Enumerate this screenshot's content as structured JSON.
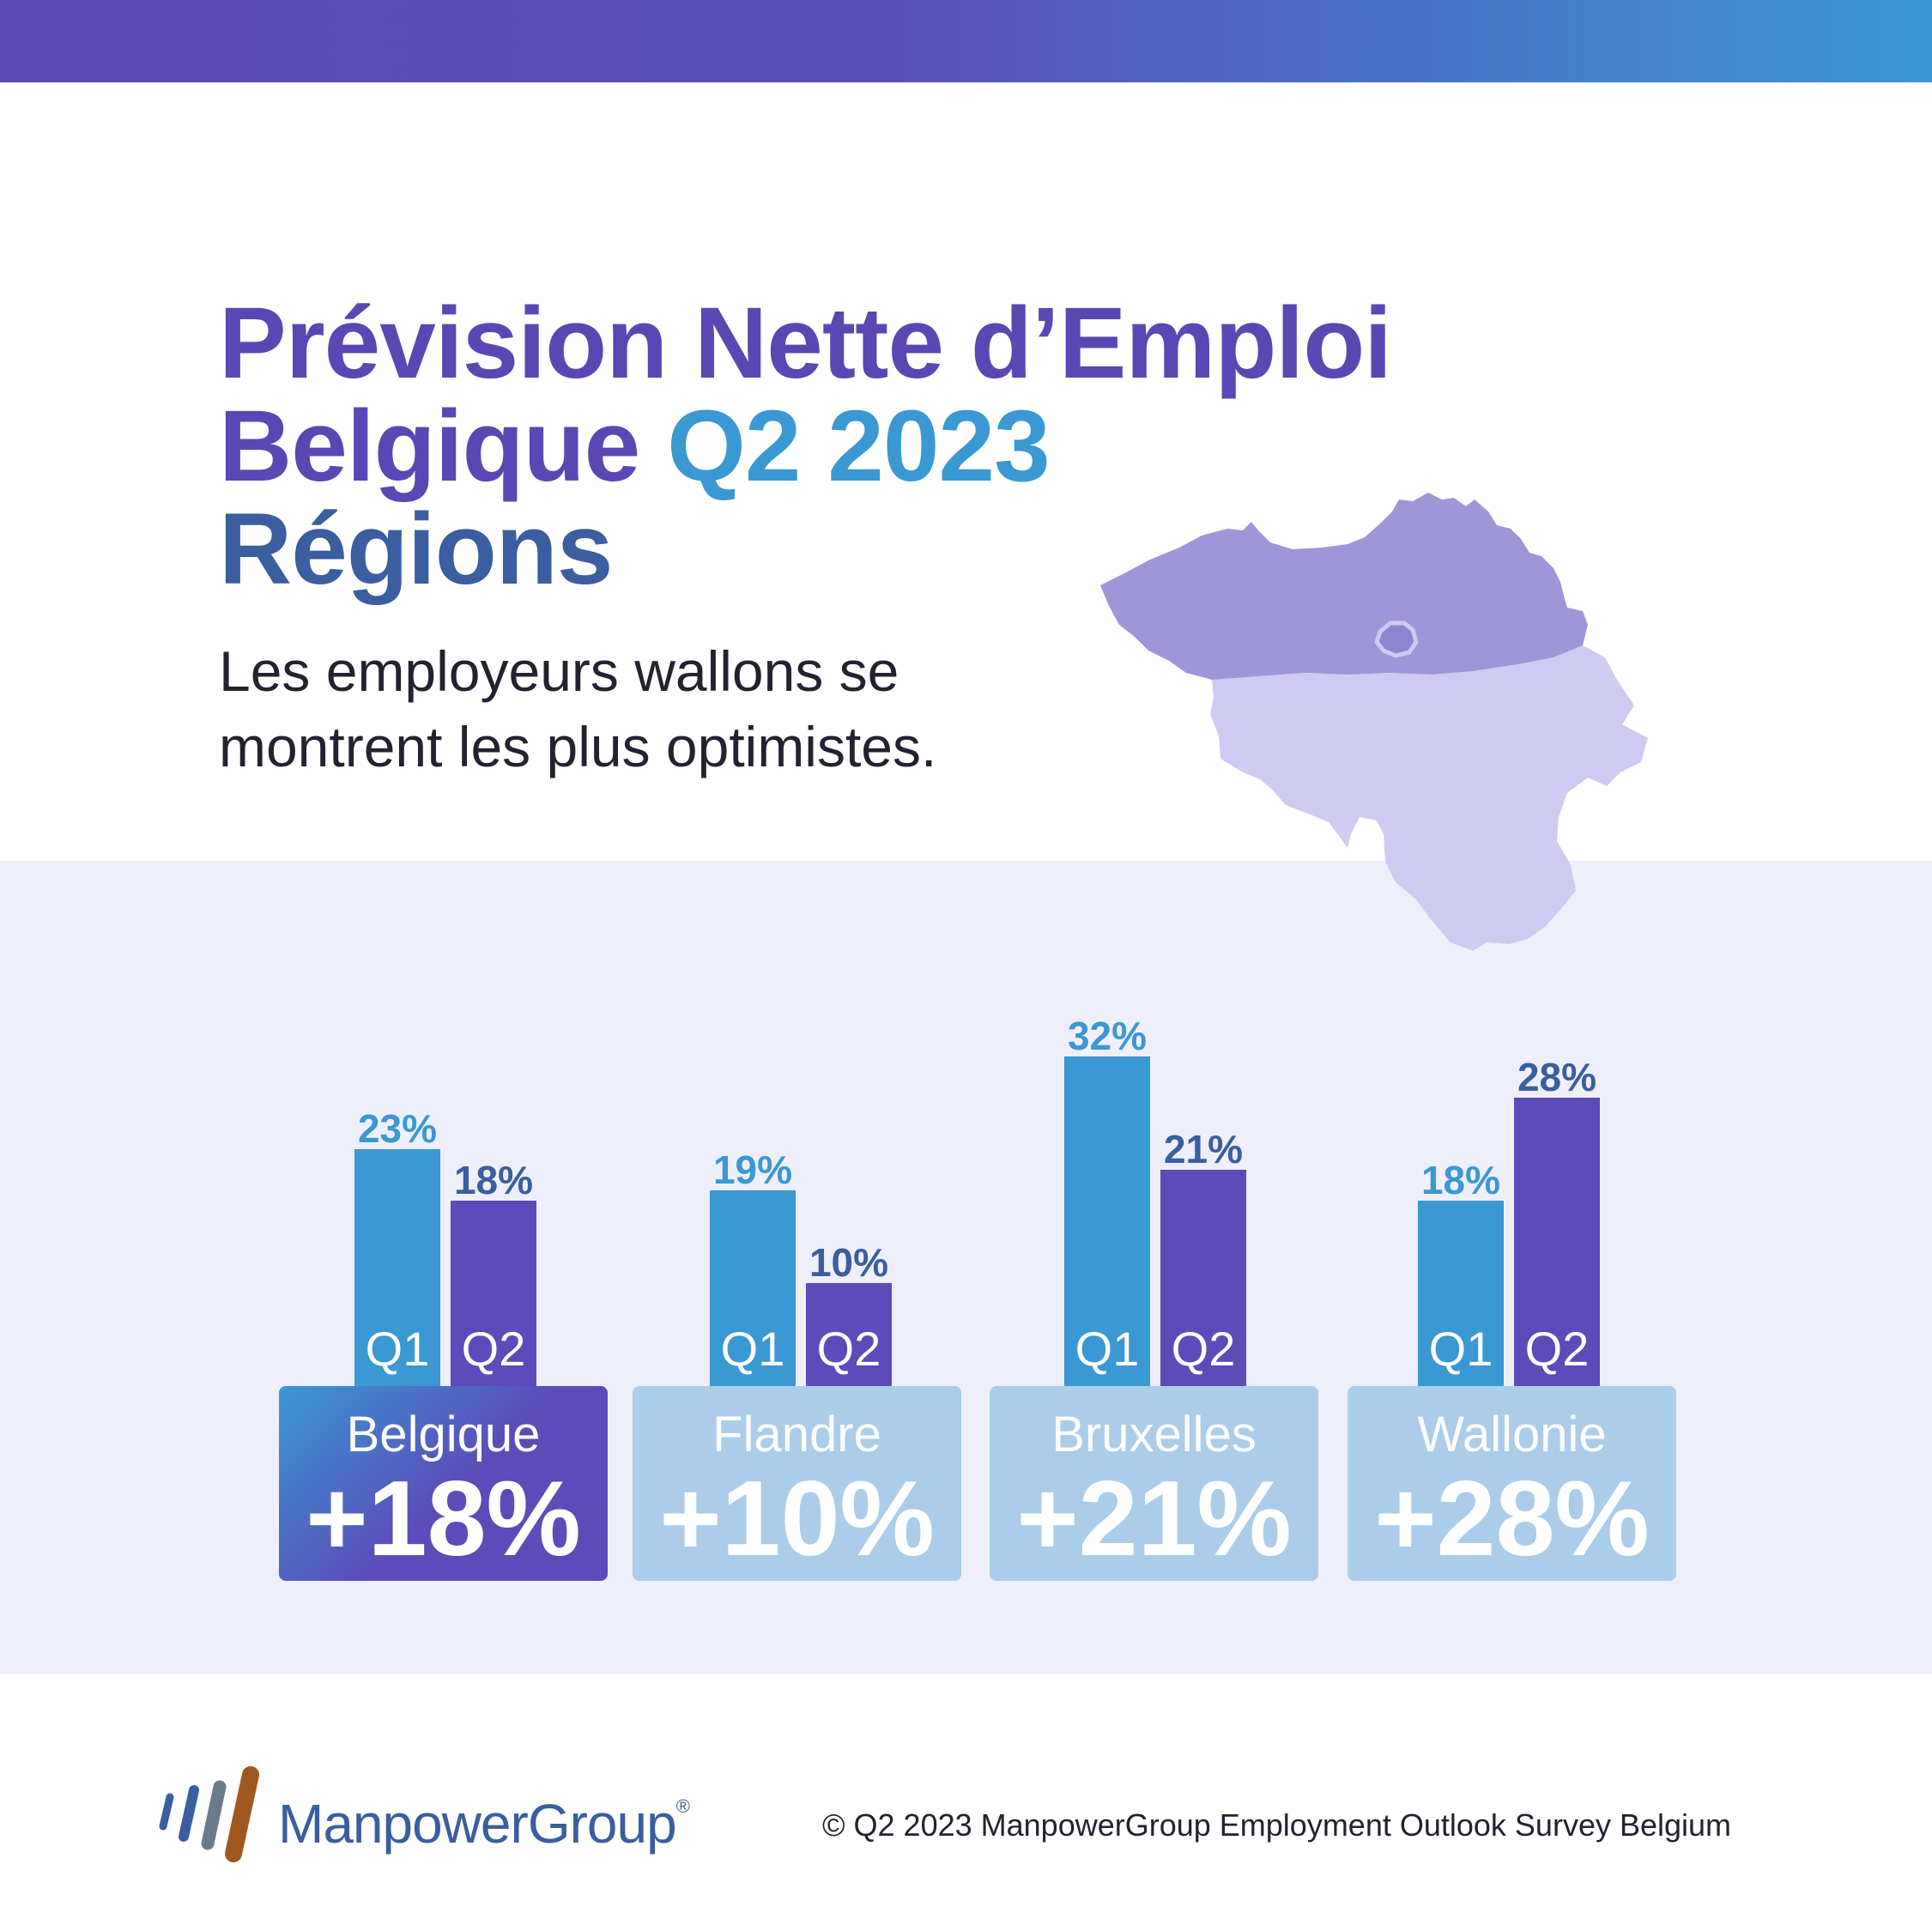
{
  "header": {
    "title_line1": "Prévision Nette d’Emploi",
    "title_line2_prefix": "Belgique",
    "title_line2_accent": "Q2 2023",
    "title_line3": "Régions",
    "subtitle_line1": "Les employeurs wallons se",
    "subtitle_line2": "montrent les plus optimistes."
  },
  "colors": {
    "q1": "#3a98d3",
    "q2": "#5c4bb8",
    "flanders_map": "#9f96d8",
    "wallonia_map": "#cfcaf2",
    "inactive_box": "#abcde9",
    "panel_bg": "#efeffb"
  },
  "chart_data": {
    "type": "bar",
    "categories": [
      "Belgique",
      "Flandre",
      "Bruxelles",
      "Wallonie"
    ],
    "series": [
      {
        "name": "Q1",
        "values": [
          23,
          19,
          32,
          18
        ],
        "labels": [
          "23%",
          "19%",
          "32%",
          "18%"
        ]
      },
      {
        "name": "Q2",
        "values": [
          18,
          10,
          21,
          28
        ],
        "labels": [
          "18%",
          "10%",
          "21%",
          "28%"
        ]
      }
    ],
    "ylim": [
      0,
      32
    ],
    "highlight": [
      "+18%",
      "+10%",
      "+21%",
      "+28%"
    ]
  },
  "footer": {
    "logo_text": "ManpowerGroup",
    "logo_mark": "®",
    "copyright": "© Q2 2023 ManpowerGroup Employment Outlook Survey Belgium"
  }
}
